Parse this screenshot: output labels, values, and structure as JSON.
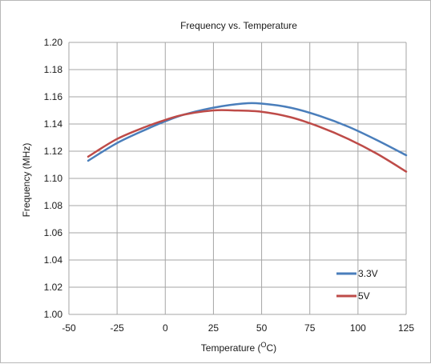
{
  "chart_data": {
    "type": "line",
    "title": "Frequency vs. Temperature",
    "xlabel": "Temperature (",
    "xlabel_superscript": "O",
    "xlabel_suffix": "C)",
    "ylabel": "Frequency (MHz)",
    "xlim": [
      -50,
      125
    ],
    "ylim": [
      1.0,
      1.2
    ],
    "x_ticks": [
      -50,
      -25,
      0,
      25,
      50,
      75,
      100,
      125
    ],
    "x_tick_labels": [
      "-50",
      "-25",
      "0",
      "25",
      "50",
      "75",
      "100",
      "125"
    ],
    "y_ticks": [
      1.0,
      1.02,
      1.04,
      1.06,
      1.08,
      1.1,
      1.12,
      1.14,
      1.16,
      1.18,
      1.2
    ],
    "y_tick_labels": [
      "1.00",
      "1.02",
      "1.04",
      "1.06",
      "1.08",
      "1.10",
      "1.12",
      "1.14",
      "1.16",
      "1.18",
      "1.20"
    ],
    "grid": true,
    "legend_position": "bottom-right",
    "series": [
      {
        "name": "3.3V",
        "color": "#4a7ebb",
        "x": [
          -40,
          -25,
          -10,
          0,
          10,
          25,
          40,
          50,
          65,
          80,
          95,
          110,
          125
        ],
        "y": [
          1.113,
          1.126,
          1.136,
          1.142,
          1.147,
          1.152,
          1.155,
          1.155,
          1.152,
          1.146,
          1.138,
          1.128,
          1.117
        ]
      },
      {
        "name": "5V",
        "color": "#be4b48",
        "x": [
          -40,
          -25,
          -10,
          0,
          10,
          25,
          35,
          50,
          65,
          80,
          95,
          110,
          125
        ],
        "y": [
          1.116,
          1.129,
          1.138,
          1.143,
          1.147,
          1.15,
          1.15,
          1.149,
          1.145,
          1.138,
          1.129,
          1.118,
          1.105
        ]
      }
    ]
  }
}
